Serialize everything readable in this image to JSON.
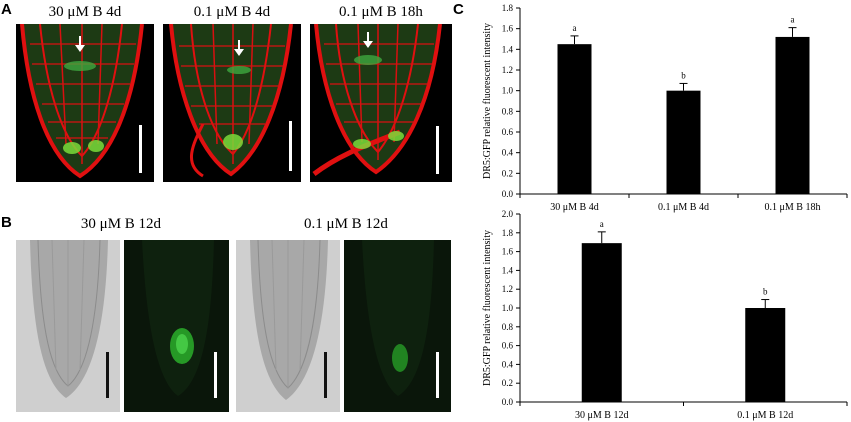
{
  "panels": {
    "a": {
      "letter": "A",
      "labels": [
        "30 μM B 4d",
        "0.1 μM B 4d",
        "0.1 μM B 18h"
      ]
    },
    "b": {
      "letter": "B",
      "labels": [
        "30 μM B 12d",
        "0.1 μM B 12d"
      ]
    },
    "c": {
      "letter": "C"
    }
  },
  "colors": {
    "membrane_red": "#e01010",
    "gfp_green": "#2db82d",
    "bar_fill": "#000000",
    "scale_bar": "#ffffff",
    "brightfield_bg": "#c8c8c8"
  },
  "chart_data": [
    {
      "type": "bar",
      "categories": [
        "30 μM B 4d",
        "0.1 μM B 4d",
        "0.1 μM B 18h"
      ],
      "values": [
        1.45,
        1.0,
        1.52
      ],
      "errors": [
        0.08,
        0.07,
        0.09
      ],
      "letters": [
        "a",
        "b",
        "a"
      ],
      "ylabel": "DR5:GFP relative fluorescent intensity",
      "ylim": [
        0,
        1.8
      ],
      "yticks": [
        "0.0",
        "0.2",
        "0.4",
        "0.6",
        "0.8",
        "1.0",
        "1.2",
        "1.4",
        "1.6",
        "1.8"
      ],
      "grid": false
    },
    {
      "type": "bar",
      "categories": [
        "30 μM B 12d",
        "0.1 μM B 12d"
      ],
      "values": [
        1.69,
        1.0
      ],
      "errors": [
        0.12,
        0.09
      ],
      "letters": [
        "a",
        "b"
      ],
      "ylabel": "DR5:GFP relative fluorescent intensity",
      "ylim": [
        0,
        2.0
      ],
      "yticks": [
        "0.0",
        "0.2",
        "0.4",
        "0.6",
        "0.8",
        "1.0",
        "1.2",
        "1.4",
        "1.6",
        "1.8",
        "2.0"
      ],
      "grid": false
    }
  ]
}
